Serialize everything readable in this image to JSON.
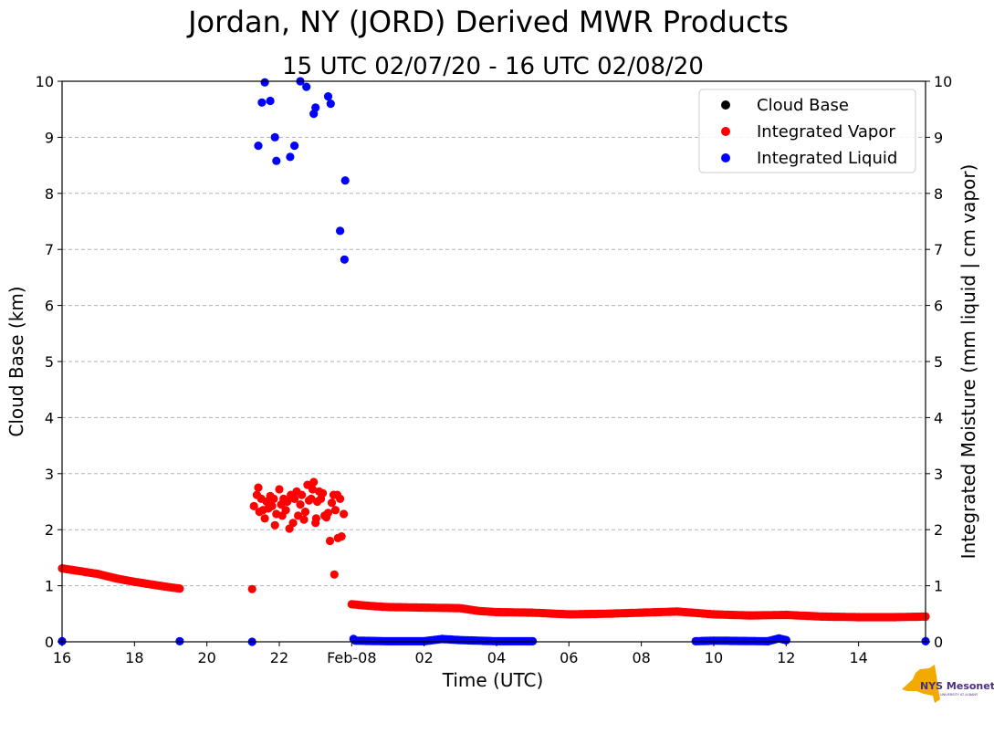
{
  "chart_data": {
    "type": "scatter",
    "title": "Jordan, NY (JORD) Derived MWR Products",
    "subtitle": "15 UTC 02/07/20 - 16 UTC 02/08/20",
    "xlabel": "Time (UTC)",
    "ylabel_left": "Cloud Base (km)",
    "ylabel_right": "Integrated Moisture (mm liquid | cm vapor)",
    "xlim": [
      16,
      39.85
    ],
    "ylim": [
      0,
      10
    ],
    "grid": "horizontal dashed",
    "legend_position": "top-right",
    "x_unit": "hours since 00 UTC 02/07/20",
    "x_ticks": [
      {
        "x": 16,
        "label": "16"
      },
      {
        "x": 18,
        "label": "18"
      },
      {
        "x": 20,
        "label": "20"
      },
      {
        "x": 22,
        "label": "22"
      },
      {
        "x": 24,
        "label": "Feb-08"
      },
      {
        "x": 26,
        "label": "02"
      },
      {
        "x": 28,
        "label": "04"
      },
      {
        "x": 30,
        "label": "06"
      },
      {
        "x": 32,
        "label": "08"
      },
      {
        "x": 34,
        "label": "10"
      },
      {
        "x": 36,
        "label": "12"
      },
      {
        "x": 38,
        "label": "14"
      }
    ],
    "y_ticks": [
      "0",
      "1",
      "2",
      "3",
      "4",
      "5",
      "6",
      "7",
      "8",
      "9",
      "10"
    ],
    "series": [
      {
        "name": "Cloud Base",
        "color": "#000000",
        "points": []
      },
      {
        "name": "Integrated Vapor",
        "color": "#ff0000",
        "trend": [
          [
            16.0,
            1.31
          ],
          [
            16.5,
            1.26
          ],
          [
            17.0,
            1.21
          ],
          [
            17.5,
            1.13
          ],
          [
            18.0,
            1.07
          ],
          [
            18.5,
            1.02
          ],
          [
            19.0,
            0.97
          ],
          [
            19.25,
            0.95
          ],
          [
            24.0,
            0.67
          ],
          [
            24.5,
            0.64
          ],
          [
            25.0,
            0.62
          ],
          [
            26.0,
            0.61
          ],
          [
            27.0,
            0.6
          ],
          [
            27.5,
            0.55
          ],
          [
            28.0,
            0.53
          ],
          [
            29.0,
            0.52
          ],
          [
            30.0,
            0.49
          ],
          [
            31.0,
            0.5
          ],
          [
            32.0,
            0.52
          ],
          [
            33.0,
            0.54
          ],
          [
            34.0,
            0.49
          ],
          [
            35.0,
            0.47
          ],
          [
            36.0,
            0.48
          ],
          [
            37.0,
            0.45
          ],
          [
            38.0,
            0.44
          ],
          [
            39.0,
            0.44
          ],
          [
            39.85,
            0.45
          ]
        ],
        "scatter": [
          [
            21.25,
            0.94
          ],
          [
            21.3,
            2.42
          ],
          [
            21.38,
            2.62
          ],
          [
            21.42,
            2.75
          ],
          [
            21.45,
            2.32
          ],
          [
            21.5,
            2.55
          ],
          [
            21.55,
            2.35
          ],
          [
            21.6,
            2.2
          ],
          [
            21.65,
            2.5
          ],
          [
            21.7,
            2.38
          ],
          [
            21.75,
            2.6
          ],
          [
            21.8,
            2.42
          ],
          [
            21.85,
            2.55
          ],
          [
            21.88,
            2.08
          ],
          [
            21.92,
            2.28
          ],
          [
            22.0,
            2.72
          ],
          [
            22.05,
            2.45
          ],
          [
            22.08,
            2.25
          ],
          [
            22.12,
            2.55
          ],
          [
            22.18,
            2.35
          ],
          [
            22.22,
            2.5
          ],
          [
            22.28,
            2.02
          ],
          [
            22.32,
            2.62
          ],
          [
            22.38,
            2.12
          ],
          [
            22.42,
            2.55
          ],
          [
            22.48,
            2.68
          ],
          [
            22.52,
            2.25
          ],
          [
            22.58,
            2.45
          ],
          [
            22.62,
            2.62
          ],
          [
            22.68,
            2.18
          ],
          [
            22.72,
            2.32
          ],
          [
            22.78,
            2.8
          ],
          [
            22.82,
            2.52
          ],
          [
            22.88,
            2.55
          ],
          [
            22.92,
            2.72
          ],
          [
            22.95,
            2.85
          ],
          [
            23.0,
            2.12
          ],
          [
            23.02,
            2.2
          ],
          [
            23.05,
            2.5
          ],
          [
            23.1,
            2.68
          ],
          [
            23.15,
            2.55
          ],
          [
            23.2,
            2.65
          ],
          [
            23.25,
            2.25
          ],
          [
            23.3,
            2.22
          ],
          [
            23.35,
            2.3
          ],
          [
            23.4,
            1.8
          ],
          [
            23.45,
            2.48
          ],
          [
            23.5,
            2.62
          ],
          [
            23.52,
            1.2
          ],
          [
            23.55,
            2.35
          ],
          [
            23.6,
            2.62
          ],
          [
            23.62,
            1.85
          ],
          [
            23.68,
            2.55
          ],
          [
            23.72,
            1.88
          ],
          [
            23.78,
            2.28
          ]
        ],
        "label_pair_note": "trend broken by data gap 19.25-21.2 and cluster 21.2-23.8"
      },
      {
        "name": "Integrated Liquid",
        "color": "#0000ff",
        "trend": [
          [
            16.0,
            0.01
          ],
          [
            19.25,
            0.01
          ],
          [
            24.1,
            0.02
          ],
          [
            25.0,
            0.01
          ],
          [
            26.0,
            0.01
          ],
          [
            26.5,
            0.05
          ],
          [
            27.0,
            0.03
          ],
          [
            28.0,
            0.01
          ],
          [
            29.0,
            0.01
          ],
          [
            33.5,
            0.01
          ],
          [
            34.0,
            0.02
          ],
          [
            35.5,
            0.01
          ],
          [
            35.8,
            0.06
          ],
          [
            36.0,
            0.03
          ],
          [
            39.85,
            0.01
          ]
        ],
        "scatter": [
          [
            21.25,
            0.0
          ],
          [
            21.42,
            8.85
          ],
          [
            21.52,
            9.62
          ],
          [
            21.6,
            9.98
          ],
          [
            21.75,
            9.65
          ],
          [
            21.88,
            9.0
          ],
          [
            21.92,
            8.58
          ],
          [
            22.3,
            8.65
          ],
          [
            22.42,
            8.85
          ],
          [
            22.58,
            10.0
          ],
          [
            22.75,
            9.9
          ],
          [
            22.95,
            9.42
          ],
          [
            23.0,
            9.53
          ],
          [
            23.35,
            9.73
          ],
          [
            23.42,
            9.6
          ],
          [
            23.68,
            7.33
          ],
          [
            23.8,
            6.82
          ],
          [
            23.82,
            8.23
          ],
          [
            24.05,
            0.05
          ]
        ]
      }
    ],
    "legend": [
      "Cloud Base",
      "Integrated Vapor",
      "Integrated Liquid"
    ]
  },
  "logo": {
    "text": "NYS Mesonet",
    "subtext": "UNIVERSITY AT ALBANY",
    "color_state": "#f2a900",
    "color_text": "#4b2e83"
  }
}
